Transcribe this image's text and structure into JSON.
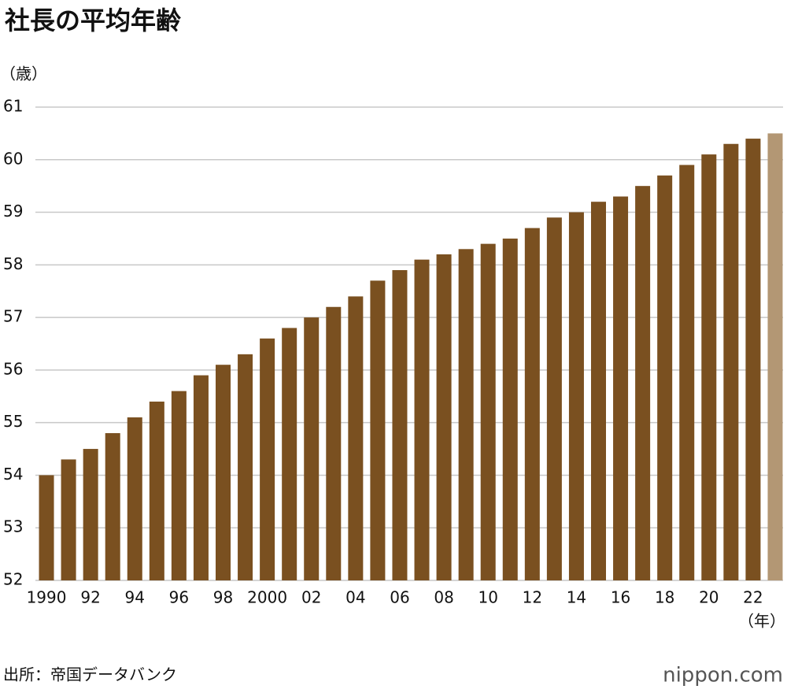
{
  "chart_data": {
    "type": "bar",
    "title": "社長の平均年齢",
    "y_unit": "（歳）",
    "x_unit": "（年）",
    "source": "出所：帝国データバンク",
    "brand": "nippon.com",
    "categories": [
      "1990",
      null,
      "92",
      null,
      "94",
      null,
      "96",
      null,
      "98",
      null,
      "2000",
      null,
      "02",
      null,
      "04",
      null,
      "06",
      null,
      "08",
      null,
      "10",
      null,
      "12",
      null,
      "14",
      null,
      "16",
      null,
      "18",
      null,
      "20",
      null,
      "22",
      null
    ],
    "values": [
      54.0,
      54.3,
      54.5,
      54.8,
      55.1,
      55.4,
      55.6,
      55.9,
      56.1,
      56.3,
      56.6,
      56.8,
      57.0,
      57.2,
      57.4,
      57.7,
      57.9,
      58.1,
      58.2,
      58.3,
      58.4,
      58.5,
      58.7,
      58.9,
      59.0,
      59.2,
      59.3,
      59.5,
      59.7,
      59.9,
      60.1,
      60.3,
      60.4,
      60.5
    ],
    "colors": [
      "#7a5020",
      "#7a5020",
      "#7a5020",
      "#7a5020",
      "#7a5020",
      "#7a5020",
      "#7a5020",
      "#7a5020",
      "#7a5020",
      "#7a5020",
      "#7a5020",
      "#7a5020",
      "#7a5020",
      "#7a5020",
      "#7a5020",
      "#7a5020",
      "#7a5020",
      "#7a5020",
      "#7a5020",
      "#7a5020",
      "#7a5020",
      "#7a5020",
      "#7a5020",
      "#7a5020",
      "#7a5020",
      "#7a5020",
      "#7a5020",
      "#7a5020",
      "#7a5020",
      "#7a5020",
      "#7a5020",
      "#7a5020",
      "#7a5020",
      "#b39774"
    ],
    "ylim": [
      52,
      61
    ],
    "yticks": [
      52,
      53,
      54,
      55,
      56,
      57,
      58,
      59,
      60,
      61
    ],
    "grid": true
  }
}
